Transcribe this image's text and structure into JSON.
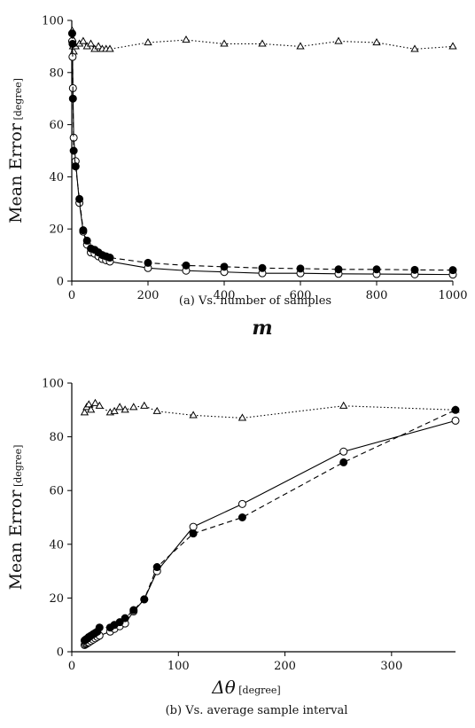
{
  "chart_data": [
    {
      "type": "line",
      "caption": "(a) Vs. number of samples",
      "xlabel": "m",
      "ylabel": "Mean Error",
      "ylabel_unit": "[degree]",
      "xlim": [
        0,
        1000
      ],
      "ylim": [
        0,
        100
      ],
      "xticks": [
        0,
        200,
        400,
        600,
        800,
        1000
      ],
      "yticks": [
        0,
        20,
        40,
        60,
        80,
        100
      ],
      "grid": false,
      "series": [
        {
          "marker": "triangle-open",
          "line": "dotted",
          "x": [
            1,
            2,
            3,
            5,
            10,
            20,
            30,
            40,
            50,
            60,
            70,
            80,
            90,
            100,
            200,
            300,
            400,
            500,
            600,
            700,
            800,
            900,
            1000
          ],
          "y": [
            96,
            93,
            90,
            88,
            90,
            91,
            92,
            90,
            91,
            89,
            90,
            89,
            89,
            89,
            91.5,
            92.5,
            91,
            91,
            90,
            92,
            91.5,
            89,
            90
          ]
        },
        {
          "marker": "circle-open",
          "line": "solid",
          "x": [
            1,
            2,
            3,
            5,
            10,
            20,
            30,
            40,
            50,
            60,
            70,
            80,
            90,
            100,
            200,
            300,
            400,
            500,
            600,
            700,
            800,
            900,
            1000
          ],
          "y": [
            92,
            86,
            74,
            55,
            46,
            30,
            19,
            14,
            11,
            10.5,
            9.5,
            8.5,
            8,
            7.5,
            5,
            4,
            3.5,
            3,
            3,
            2.8,
            2.7,
            2.6,
            2.5
          ]
        },
        {
          "marker": "circle-filled",
          "line": "dashed",
          "x": [
            1,
            2,
            3,
            5,
            10,
            20,
            30,
            40,
            50,
            60,
            70,
            80,
            90,
            100,
            200,
            300,
            400,
            500,
            600,
            700,
            800,
            900,
            1000
          ],
          "y": [
            95,
            91,
            70,
            50,
            44,
            31.5,
            19.5,
            15.5,
            12.5,
            12,
            11,
            10,
            9.5,
            9,
            7,
            6,
            5.5,
            5,
            4.8,
            4.5,
            4.5,
            4.3,
            4.2
          ]
        }
      ]
    },
    {
      "type": "line",
      "caption": "(b) Vs. average sample interval",
      "xlabel": "Δθ",
      "xlabel_unit": "[degree]",
      "ylabel": "Mean Error",
      "ylabel_unit": "[degree]",
      "xlim": [
        0,
        360
      ],
      "ylim": [
        0,
        100
      ],
      "xticks": [
        0,
        100,
        200,
        300
      ],
      "yticks": [
        0,
        20,
        40,
        60,
        80,
        100
      ],
      "grid": false,
      "series": [
        {
          "marker": "triangle-open",
          "line": "dotted",
          "x": [
            12,
            14,
            16,
            18,
            22,
            26,
            36,
            40,
            45,
            50,
            58,
            68,
            80,
            114,
            160,
            255,
            360
          ],
          "y": [
            89,
            91,
            92,
            90,
            92.5,
            91.5,
            89,
            89.5,
            91,
            90,
            91,
            91.5,
            89.5,
            88,
            87,
            91.5,
            90
          ]
        },
        {
          "marker": "circle-open",
          "line": "solid",
          "x": [
            12,
            13,
            14,
            15,
            16,
            18,
            20,
            22,
            24,
            26,
            36,
            40,
            45,
            50,
            58,
            68,
            80,
            114,
            160,
            255,
            360
          ],
          "y": [
            2.5,
            2.8,
            3,
            3.3,
            3.5,
            4,
            4.5,
            5,
            5.5,
            6,
            7.5,
            8.5,
            9.5,
            10.5,
            15,
            19.5,
            30,
            46.5,
            55,
            74.5,
            86
          ]
        },
        {
          "marker": "circle-filled",
          "line": "dashed",
          "x": [
            12,
            13,
            14,
            15,
            16,
            18,
            20,
            22,
            24,
            26,
            36,
            40,
            45,
            50,
            58,
            68,
            80,
            114,
            160,
            255,
            360
          ],
          "y": [
            4.2,
            4.5,
            4.8,
            5,
            5.5,
            6,
            6.5,
            7,
            7.5,
            9,
            9,
            10,
            11,
            12.5,
            15.5,
            19.5,
            31.5,
            44,
            50,
            70.5,
            90
          ]
        }
      ]
    }
  ]
}
